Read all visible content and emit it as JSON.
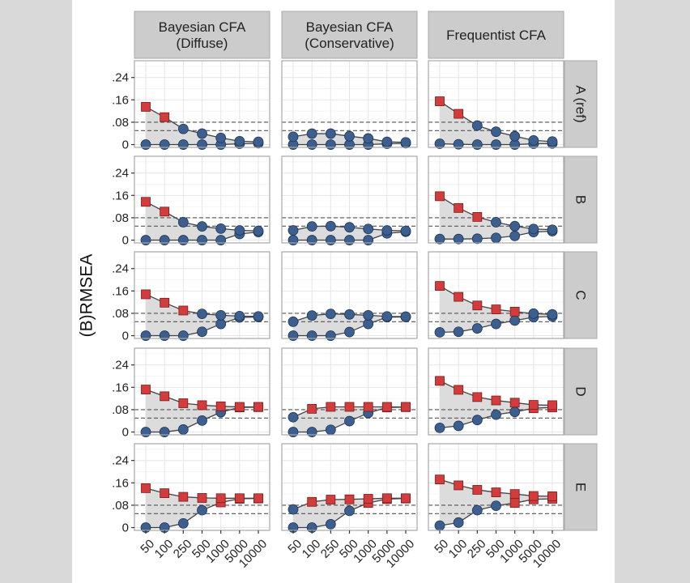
{
  "chart_data": {
    "type": "line",
    "title": "",
    "ylabel": "(B)RMSEA",
    "xlabel": "",
    "x_categories": [
      "50",
      "100",
      "250",
      "500",
      "1000",
      "5000",
      "10000"
    ],
    "y_ticks": [
      0,
      0.08,
      0.16,
      0.24
    ],
    "y_tick_labels": [
      "0",
      ".08",
      ".16",
      ".24"
    ],
    "ylim": [
      -0.01,
      0.3
    ],
    "reference_lines": [
      0.05,
      0.08
    ],
    "grid": true,
    "columns": [
      "Bayesian CFA\n(Diffuse)",
      "Bayesian CFA\n(Conservative)",
      "Frequentist CFA"
    ],
    "column_labels": [
      [
        "Bayesian CFA",
        "(Diffuse)"
      ],
      [
        "Bayesian CFA",
        "(Conservative)"
      ],
      [
        "Frequentist CFA"
      ]
    ],
    "rows": [
      "A (ref)",
      "B",
      "C",
      "D",
      "E"
    ],
    "marker_rule": "value above 0.08 shown as red square, otherwise blue circle",
    "colors": {
      "above": "#d23c3c",
      "below": "#3d5f8f",
      "ribbon": "#dcdcdc",
      "strip": "#cccccc",
      "line": "#444444"
    },
    "panels": [
      {
        "row": "A (ref)",
        "col": "Bayesian CFA (Diffuse)",
        "upper": [
          0.135,
          0.098,
          0.056,
          0.039,
          0.024,
          0.012,
          0.01
        ],
        "lower": [
          0,
          0,
          0,
          0,
          0,
          0.003,
          0.005
        ]
      },
      {
        "row": "A (ref)",
        "col": "Bayesian CFA (Conservative)",
        "upper": [
          0.028,
          0.039,
          0.039,
          0.03,
          0.022,
          0.01,
          0.008
        ],
        "lower": [
          0,
          0,
          0,
          0,
          0,
          0.003,
          0.005
        ]
      },
      {
        "row": "A (ref)",
        "col": "Frequentist CFA",
        "upper": [
          0.155,
          0.11,
          0.068,
          0.046,
          0.03,
          0.015,
          0.011
        ],
        "lower": [
          0.003,
          0.001,
          0,
          0,
          0,
          0.003,
          0.004
        ]
      },
      {
        "row": "B",
        "col": "Bayesian CFA (Diffuse)",
        "upper": [
          0.137,
          0.102,
          0.064,
          0.049,
          0.041,
          0.035,
          0.033
        ],
        "lower": [
          0,
          0,
          0,
          0,
          0,
          0.022,
          0.029
        ]
      },
      {
        "row": "B",
        "col": "Bayesian CFA (Conservative)",
        "upper": [
          0.035,
          0.049,
          0.05,
          0.046,
          0.04,
          0.035,
          0.033
        ],
        "lower": [
          0,
          0,
          0,
          0,
          0,
          0.024,
          0.03
        ]
      },
      {
        "row": "B",
        "col": "Frequentist CFA",
        "upper": [
          0.157,
          0.115,
          0.083,
          0.064,
          0.05,
          0.04,
          0.037
        ],
        "lower": [
          0.004,
          0.004,
          0.005,
          0.008,
          0.015,
          0.029,
          0.032
        ]
      },
      {
        "row": "C",
        "col": "Bayesian CFA (Diffuse)",
        "upper": [
          0.148,
          0.118,
          0.09,
          0.078,
          0.073,
          0.07,
          0.069
        ],
        "lower": [
          0,
          0,
          0,
          0.014,
          0.042,
          0.065,
          0.067
        ]
      },
      {
        "row": "C",
        "col": "Bayesian CFA (Conservative)",
        "upper": [
          0.05,
          0.072,
          0.078,
          0.076,
          0.073,
          0.069,
          0.068
        ],
        "lower": [
          0,
          0,
          0,
          0.013,
          0.042,
          0.066,
          0.067
        ]
      },
      {
        "row": "C",
        "col": "Frequentist CFA",
        "upper": [
          0.178,
          0.139,
          0.108,
          0.094,
          0.086,
          0.079,
          0.076
        ],
        "lower": [
          0.012,
          0.014,
          0.026,
          0.042,
          0.054,
          0.066,
          0.069
        ]
      },
      {
        "row": "D",
        "col": "Bayesian CFA (Diffuse)",
        "upper": [
          0.152,
          0.128,
          0.103,
          0.096,
          0.092,
          0.09,
          0.09
        ],
        "lower": [
          0,
          0,
          0.009,
          0.041,
          0.071,
          0.088,
          0.089
        ]
      },
      {
        "row": "D",
        "col": "Bayesian CFA (Conservative)",
        "upper": [
          0.053,
          0.083,
          0.09,
          0.09,
          0.09,
          0.09,
          0.09
        ],
        "lower": [
          0,
          0,
          0.008,
          0.039,
          0.068,
          0.088,
          0.089
        ]
      },
      {
        "row": "D",
        "col": "Frequentist CFA",
        "upper": [
          0.183,
          0.151,
          0.125,
          0.113,
          0.105,
          0.097,
          0.096
        ],
        "lower": [
          0.015,
          0.022,
          0.043,
          0.062,
          0.072,
          0.085,
          0.088
        ]
      },
      {
        "row": "E",
        "col": "Bayesian CFA (Diffuse)",
        "upper": [
          0.141,
          0.123,
          0.11,
          0.106,
          0.105,
          0.105,
          0.105
        ],
        "lower": [
          0,
          0,
          0.015,
          0.062,
          0.09,
          0.103,
          0.104
        ]
      },
      {
        "row": "E",
        "col": "Bayesian CFA (Conservative)",
        "upper": [
          0.065,
          0.092,
          0.1,
          0.101,
          0.103,
          0.105,
          0.105
        ],
        "lower": [
          0,
          0,
          0.012,
          0.06,
          0.088,
          0.102,
          0.104
        ]
      },
      {
        "row": "E",
        "col": "Frequentist CFA",
        "upper": [
          0.172,
          0.151,
          0.135,
          0.126,
          0.12,
          0.113,
          0.112
        ],
        "lower": [
          0.007,
          0.018,
          0.062,
          0.078,
          0.088,
          0.101,
          0.103
        ]
      }
    ]
  }
}
